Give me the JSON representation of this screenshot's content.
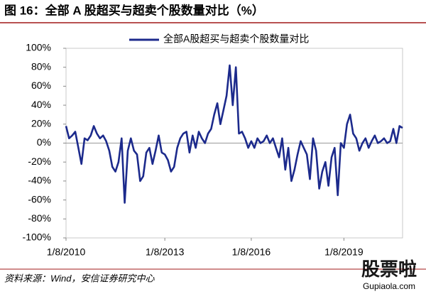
{
  "chart_data": {
    "type": "line",
    "title": "图 16：全部 A 股超买与超卖个股数量对比（%）",
    "source": "资料来源：Wind，安信证券研究中心",
    "watermark": {
      "text": "股票啦",
      "url": "Gupiaola.com"
    },
    "legend": "top",
    "x": [
      2010.0,
      2010.1,
      2010.2,
      2010.3,
      2010.4,
      2010.5,
      2010.6,
      2010.7,
      2010.8,
      2010.9,
      2011.0,
      2011.1,
      2011.2,
      2011.3,
      2011.4,
      2011.5,
      2011.6,
      2011.7,
      2011.8,
      2011.9,
      2012.0,
      2012.1,
      2012.2,
      2012.3,
      2012.4,
      2012.5,
      2012.6,
      2012.7,
      2012.8,
      2012.9,
      2013.0,
      2013.1,
      2013.2,
      2013.3,
      2013.4,
      2013.5,
      2013.6,
      2013.7,
      2013.8,
      2013.9,
      2014.0,
      2014.1,
      2014.2,
      2014.3,
      2014.4,
      2014.5,
      2014.6,
      2014.7,
      2014.8,
      2014.9,
      2015.0,
      2015.1,
      2015.2,
      2015.3,
      2015.4,
      2015.5,
      2015.6,
      2015.7,
      2015.8,
      2015.9,
      2016.0,
      2016.1,
      2016.2,
      2016.3,
      2016.4,
      2016.5,
      2016.6,
      2016.7,
      2016.8,
      2016.9,
      2017.0,
      2017.1,
      2017.2,
      2017.3,
      2017.4,
      2017.5,
      2017.6,
      2017.7,
      2017.8,
      2017.9,
      2018.0,
      2018.1,
      2018.2,
      2018.3,
      2018.4,
      2018.5,
      2018.6,
      2018.7,
      2018.8,
      2018.9,
      2019.0,
      2019.1,
      2019.2,
      2019.3,
      2019.4,
      2019.5,
      2019.6,
      2019.7,
      2019.8,
      2019.9,
      2020.0,
      2020.1,
      2020.2,
      2020.3,
      2020.4,
      2020.5,
      2020.6,
      2020.7,
      2020.8,
      2020.9
    ],
    "series": [
      {
        "name": "全部A股超买与超卖个股数量对比",
        "color": "#1c2a8c",
        "values": [
          18,
          5,
          8,
          12,
          -5,
          -22,
          5,
          3,
          8,
          18,
          10,
          5,
          8,
          2,
          -8,
          -25,
          -30,
          -20,
          5,
          -63,
          -8,
          5,
          -8,
          -12,
          -40,
          -35,
          -10,
          -5,
          -22,
          -8,
          8,
          -10,
          -12,
          -18,
          -30,
          -25,
          -5,
          5,
          10,
          12,
          -10,
          8,
          -5,
          12,
          5,
          0,
          10,
          15,
          30,
          42,
          20,
          35,
          50,
          82,
          40,
          80,
          10,
          12,
          5,
          -5,
          2,
          -5,
          5,
          0,
          2,
          8,
          0,
          5,
          -5,
          -15,
          5,
          -28,
          -5,
          -40,
          -28,
          -12,
          2,
          -5,
          -12,
          -38,
          5,
          -8,
          -48,
          -30,
          -20,
          -45,
          -15,
          -5,
          -55,
          0,
          -5,
          20,
          30,
          10,
          5,
          -8,
          0,
          5,
          -5,
          2,
          8,
          0,
          2,
          5,
          0,
          2,
          15,
          0,
          18,
          16
        ]
      }
    ],
    "xlim": [
      2010.0,
      2020.9
    ],
    "xticks": [
      {
        "value": 2010.0,
        "label": "1/8/2010"
      },
      {
        "value": 2013.2,
        "label": "1/8/2013"
      },
      {
        "value": 2016.0,
        "label": "1/8/2016"
      },
      {
        "value": 2019.0,
        "label": "1/8/2019"
      }
    ],
    "ylim": [
      -100,
      100
    ],
    "yticks": [
      {
        "value": -100,
        "label": "-100%"
      },
      {
        "value": -80,
        "label": "-80%"
      },
      {
        "value": -60,
        "label": "-60%"
      },
      {
        "value": -40,
        "label": "-40%"
      },
      {
        "value": -20,
        "label": "-20%"
      },
      {
        "value": 0,
        "label": "0%"
      },
      {
        "value": 20,
        "label": "20%"
      },
      {
        "value": 40,
        "label": "40%"
      },
      {
        "value": 60,
        "label": "60%"
      },
      {
        "value": 80,
        "label": "80%"
      },
      {
        "value": 100,
        "label": "100%"
      }
    ],
    "grid": false
  }
}
